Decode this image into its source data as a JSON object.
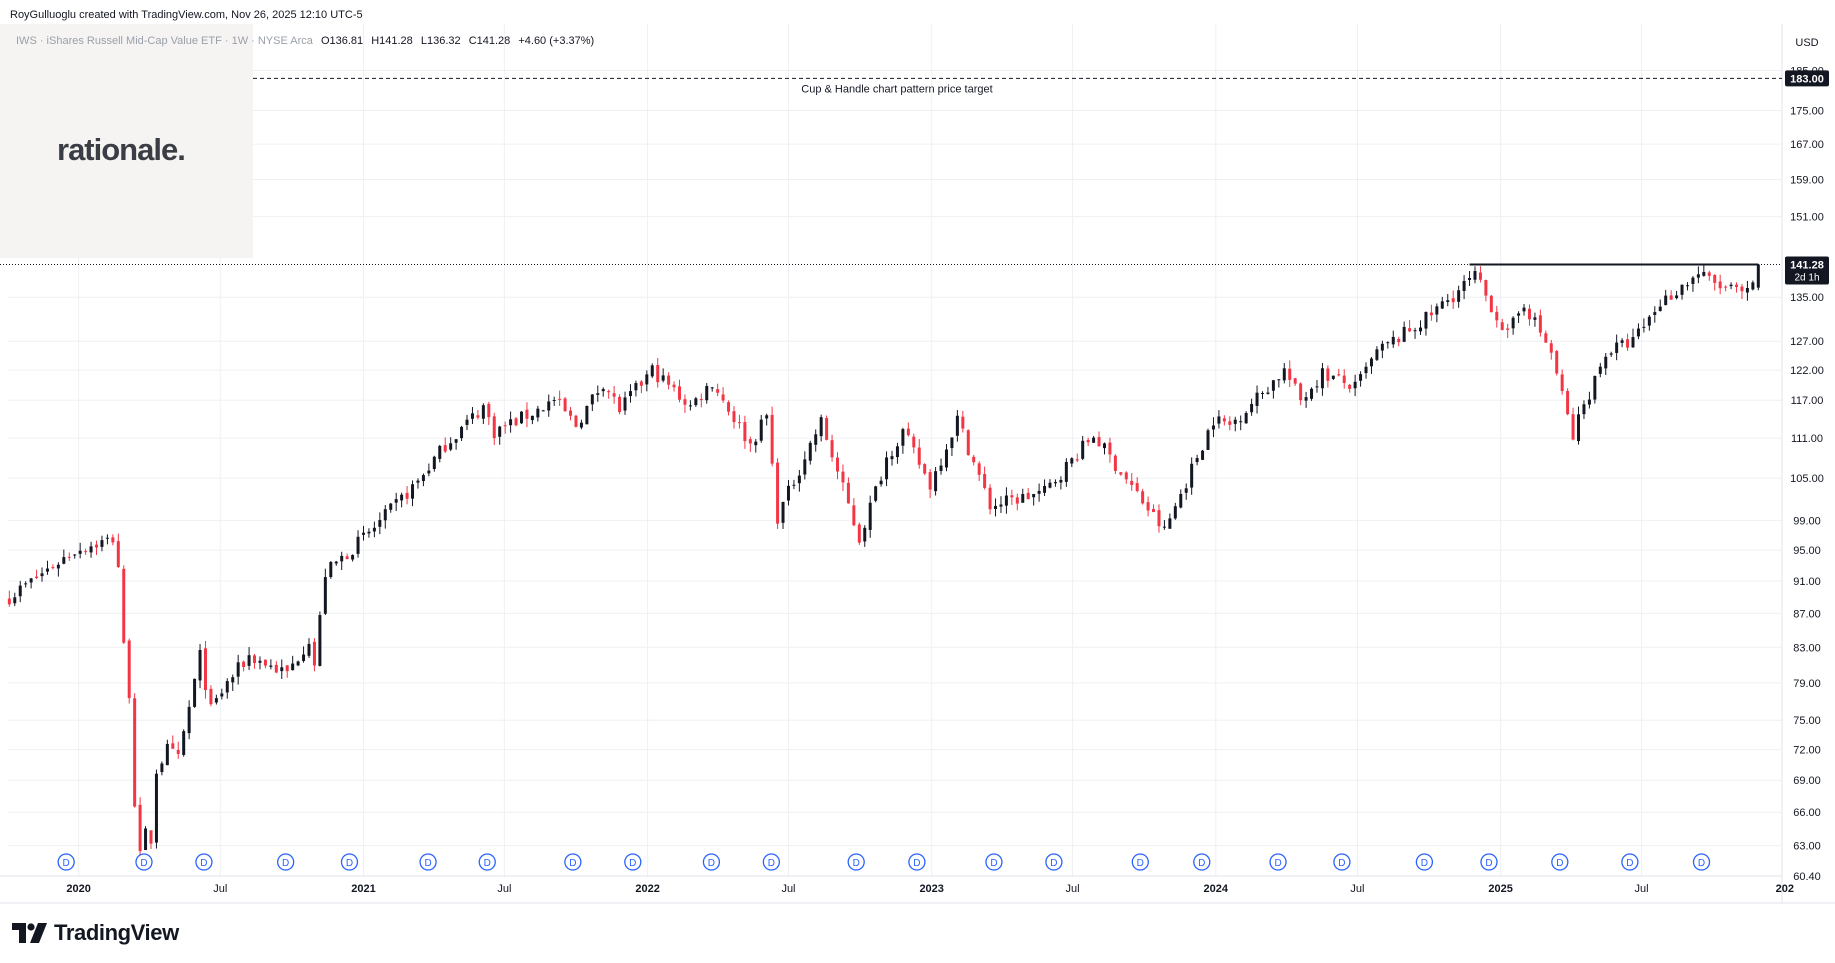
{
  "header": {
    "attribution": "RoyGulluoglu created with TradingView.com, Nov 26, 2025 12:10 UTC-5"
  },
  "legend": {
    "symbol": "IWS · iShares Russell Mid-Cap Value ETF · 1W · NYSE Arca",
    "open": "O136.81",
    "high": "H141.28",
    "low": "L136.32",
    "close": "C141.28",
    "change": "+4.60 (+3.37%)"
  },
  "watermark": {
    "text": "rationale."
  },
  "footer": {
    "brand": "TradingView"
  },
  "colors": {
    "up": "#131722",
    "down": "#f23645",
    "dividend_marker": "#2962ff",
    "grid": "#eef0f4",
    "target_line": "#131722",
    "price_label_bg": "#131722"
  },
  "chart_data": {
    "type": "candlestick",
    "currency": "USD",
    "interval": "1W",
    "scale": "log",
    "ylim": [
      60.4,
      185
    ],
    "y_ticks": [
      185,
      175,
      167,
      159,
      151,
      135,
      127,
      122,
      117,
      111,
      105,
      99,
      95,
      91,
      87,
      83,
      79,
      75,
      72,
      69,
      66,
      63,
      60.4
    ],
    "y_tick_labels": [
      "185.00",
      "175.00",
      "167.00",
      "159.00",
      "151.00",
      "135.00",
      "127.00",
      "122.00",
      "117.00",
      "111.00",
      "105.00",
      "99.00",
      "95.00",
      "91.00",
      "87.00",
      "83.00",
      "79.00",
      "75.00",
      "72.00",
      "69.00",
      "66.00",
      "63.00",
      "60.40"
    ],
    "x_range": [
      "2019-10-01",
      "2025-12-31"
    ],
    "x_ticks": [
      {
        "date": "2020-01-01",
        "label": "2020",
        "bold": true
      },
      {
        "date": "2020-07-01",
        "label": "Jul",
        "bold": false
      },
      {
        "date": "2021-01-01",
        "label": "2021",
        "bold": true
      },
      {
        "date": "2021-07-01",
        "label": "Jul",
        "bold": false
      },
      {
        "date": "2022-01-01",
        "label": "2022",
        "bold": true
      },
      {
        "date": "2022-07-01",
        "label": "Jul",
        "bold": false
      },
      {
        "date": "2023-01-01",
        "label": "2023",
        "bold": true
      },
      {
        "date": "2023-07-01",
        "label": "Jul",
        "bold": false
      },
      {
        "date": "2024-01-01",
        "label": "2024",
        "bold": true
      },
      {
        "date": "2024-07-01",
        "label": "Jul",
        "bold": false
      },
      {
        "date": "2025-01-01",
        "label": "2025",
        "bold": true
      },
      {
        "date": "2025-07-01",
        "label": "Jul",
        "bold": false
      },
      {
        "date": "2026-01-01",
        "label": "202",
        "bold": true
      }
    ],
    "price_path": [
      [
        "2019-10-04",
        89
      ],
      [
        "2019-12-27",
        95
      ],
      [
        "2020-02-14",
        96.5
      ],
      [
        "2020-02-21",
        93
      ],
      [
        "2020-02-28",
        83
      ],
      [
        "2020-03-06",
        78
      ],
      [
        "2020-03-13",
        67
      ],
      [
        "2020-03-20",
        62
      ],
      [
        "2020-03-27",
        64
      ],
      [
        "2020-04-03",
        63.5
      ],
      [
        "2020-04-10",
        70
      ],
      [
        "2020-04-24",
        72
      ],
      [
        "2020-05-08",
        71
      ],
      [
        "2020-06-05",
        82
      ],
      [
        "2020-06-19",
        76
      ],
      [
        "2020-07-10",
        79
      ],
      [
        "2020-08-07",
        82
      ],
      [
        "2020-09-25",
        80
      ],
      [
        "2020-10-23",
        84
      ],
      [
        "2020-10-30",
        81
      ],
      [
        "2020-11-13",
        92
      ],
      [
        "2021-01-15",
        98
      ],
      [
        "2021-03-12",
        104.5
      ],
      [
        "2021-04-16",
        110
      ],
      [
        "2021-06-04",
        116
      ],
      [
        "2021-06-18",
        112
      ],
      [
        "2021-08-06",
        115
      ],
      [
        "2021-09-03",
        117
      ],
      [
        "2021-10-01",
        113
      ],
      [
        "2021-11-05",
        120
      ],
      [
        "2021-11-26",
        115.5
      ],
      [
        "2022-01-07",
        122
      ],
      [
        "2022-02-25",
        116
      ],
      [
        "2022-03-25",
        120
      ],
      [
        "2022-05-13",
        110
      ],
      [
        "2022-06-03",
        114.5
      ],
      [
        "2022-06-17",
        99.5
      ],
      [
        "2022-07-29",
        110
      ],
      [
        "2022-08-12",
        113.5
      ],
      [
        "2022-09-30",
        96.5
      ],
      [
        "2022-11-04",
        108
      ],
      [
        "2022-11-25",
        112
      ],
      [
        "2022-12-30",
        104
      ],
      [
        "2023-02-03",
        114
      ],
      [
        "2023-03-17",
        101
      ],
      [
        "2023-05-26",
        103
      ],
      [
        "2023-07-28",
        111.5
      ],
      [
        "2023-10-27",
        97.5
      ],
      [
        "2023-12-29",
        114
      ],
      [
        "2024-01-19",
        113
      ],
      [
        "2024-03-29",
        122
      ],
      [
        "2024-04-19",
        117
      ],
      [
        "2024-05-17",
        121.5
      ],
      [
        "2024-06-28",
        119
      ],
      [
        "2024-07-26",
        125
      ],
      [
        "2024-09-27",
        131
      ],
      [
        "2024-11-29",
        139
      ],
      [
        "2025-01-10",
        128
      ],
      [
        "2025-01-31",
        134
      ],
      [
        "2025-03-07",
        125
      ],
      [
        "2025-04-04",
        111
      ],
      [
        "2025-04-11",
        114
      ],
      [
        "2025-05-16",
        125
      ],
      [
        "2025-06-20",
        127
      ],
      [
        "2025-07-25",
        134
      ],
      [
        "2025-09-12",
        139.5
      ],
      [
        "2025-10-10",
        137
      ],
      [
        "2025-11-14",
        135.5
      ],
      [
        "2025-11-21",
        136.81
      ]
    ],
    "last_candle": {
      "date": "2025-11-28",
      "open": 136.81,
      "high": 141.28,
      "low": 136.32,
      "close": 141.28
    },
    "dividend_dates": [
      "2019-12-16",
      "2020-03-25",
      "2020-06-10",
      "2020-09-23",
      "2020-12-14",
      "2021-03-25",
      "2021-06-09",
      "2021-09-27",
      "2021-12-13",
      "2022-03-24",
      "2022-06-09",
      "2022-09-26",
      "2022-12-13",
      "2023-03-22",
      "2023-06-07",
      "2023-09-26",
      "2023-12-14",
      "2024-03-21",
      "2024-06-11",
      "2024-09-25",
      "2024-12-17",
      "2025-03-18",
      "2025-06-16",
      "2025-09-16"
    ],
    "dividend_label": "D",
    "resistance_line": {
      "from": "2024-11-22",
      "to": "2025-11-28",
      "price": 141.28
    },
    "target": {
      "price": 183,
      "label": "183.00",
      "annotation": "Cup & Handle chart pattern price target"
    },
    "last_price_label": {
      "price": "141.28",
      "countdown": "2d 1h"
    }
  }
}
